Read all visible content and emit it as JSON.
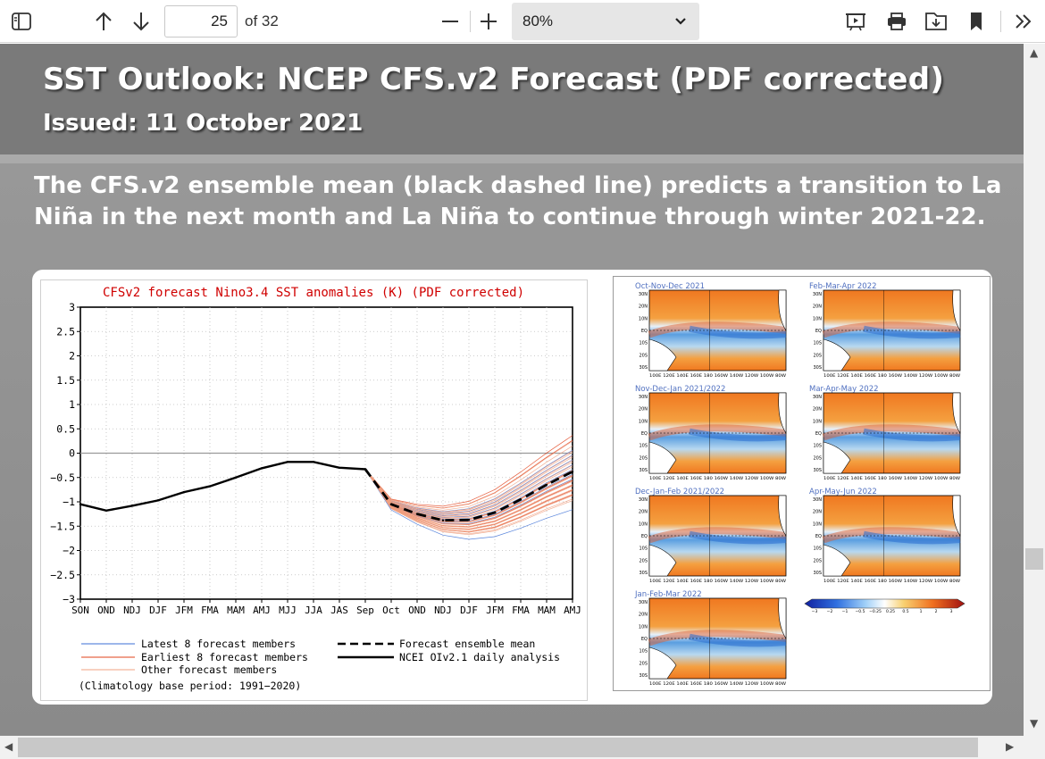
{
  "toolbar": {
    "page_number": "25",
    "page_total": "of 32",
    "zoom": "80%"
  },
  "slide": {
    "title": "SST Outlook: NCEP CFS.v2 Forecast (PDF corrected)",
    "issued": "Issued: 11 October 2021",
    "description": "The CFS.v2 ensemble mean (black dashed line) predicts a transition to La Niña in the next month and La Niña to continue through winter 2021-22."
  },
  "chart_data": {
    "type": "line",
    "title": "CFSv2 forecast Nino3.4 SST anomalies (K) (PDF corrected)",
    "categories": [
      "SON",
      "OND",
      "NDJ",
      "DJF",
      "JFM",
      "FMA",
      "MAM",
      "AMJ",
      "MJJ",
      "JJA",
      "JAS",
      "Sep",
      "Oct",
      "OND",
      "NDJ",
      "DJF",
      "JFM",
      "FMA",
      "MAM",
      "AMJ"
    ],
    "ylim": [
      -3,
      3
    ],
    "yticks": [
      "3",
      "2.5",
      "2",
      "1.5",
      "1",
      "0.5",
      "0",
      "−0.5",
      "−1",
      "−1.5",
      "−2",
      "−2.5",
      "−3"
    ],
    "series": [
      {
        "name": "NCEI OIv2.1 daily analysis",
        "values": [
          -1.05,
          -1.18,
          -1.08,
          -0.97,
          -0.8,
          -0.68,
          -0.5,
          -0.31,
          -0.18,
          -0.18,
          -0.3,
          -0.33,
          null,
          null,
          null,
          null,
          null,
          null,
          null,
          null
        ]
      },
      {
        "name": "Forecast ensemble mean",
        "values": [
          null,
          null,
          null,
          null,
          null,
          null,
          null,
          null,
          null,
          null,
          null,
          -0.33,
          -1.05,
          -1.25,
          -1.38,
          -1.37,
          -1.22,
          -0.95,
          -0.65,
          -0.38
        ]
      },
      {
        "name": "Latest 8 forecast members",
        "values": [
          null,
          null,
          null,
          null,
          null,
          null,
          null,
          null,
          null,
          null,
          null,
          -0.33,
          -1.0,
          -1.2,
          -1.4,
          -1.5,
          -1.3,
          -1.05,
          -0.75,
          -0.45
        ]
      },
      {
        "name": "Earliest 8 forecast members",
        "values": [
          null,
          null,
          null,
          null,
          null,
          null,
          null,
          null,
          null,
          null,
          null,
          -0.33,
          -1.0,
          -1.2,
          -1.3,
          -1.28,
          -1.1,
          -0.8,
          -0.5,
          -0.25
        ]
      }
    ],
    "legend": [
      "Latest 8 forecast members",
      "Earliest 8 forecast members",
      "Other forecast members",
      "Forecast ensemble mean",
      "NCEI OIv2.1 daily analysis"
    ],
    "note": "(Climatology base period: 1991−2020)",
    "colors": {
      "latest": "#3b6fd6",
      "earliest": "#e0401a",
      "other": "#f0a080",
      "mean": "#000000",
      "obs": "#000000",
      "title": "#d00000"
    }
  },
  "maps": {
    "panels": [
      "Oct-Nov-Dec 2021",
      "Feb-Mar-Apr 2022",
      "Nov-Dec-Jan 2021/2022",
      "Mar-Apr-May 2022",
      "Dec-Jan-Feb 2021/2022",
      "Apr-May-Jun 2022",
      "Jan-Feb-Mar 2022"
    ],
    "colorbar": [
      "−3",
      "−2",
      "−1",
      "−0.5",
      "−0.25",
      "0.25",
      "0.5",
      "1",
      "2",
      "3"
    ],
    "lat_labels": [
      "30N",
      "20N",
      "10N",
      "EQ",
      "10S",
      "20S",
      "30S"
    ],
    "lon_labels": "100E 120E 140E 160E 180 160W 140W 120W 100W 80W"
  }
}
